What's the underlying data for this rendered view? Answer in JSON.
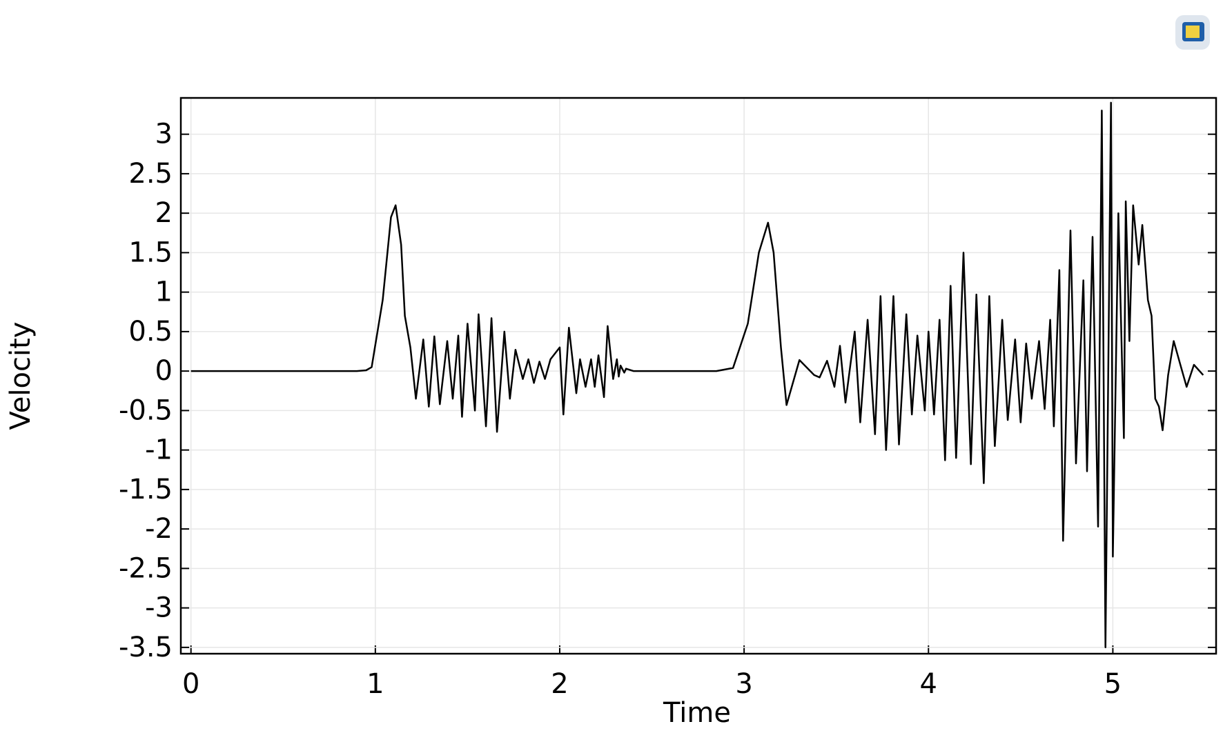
{
  "chart_data": {
    "type": "line",
    "x_label": "Time",
    "y_label": "Velocity",
    "xlim": [
      -0.055,
      5.56
    ],
    "ylim": [
      -3.58,
      3.46
    ],
    "xticks": [
      0,
      1,
      2,
      3,
      4,
      5
    ],
    "yticks": [
      -3.5,
      -3,
      -2.5,
      -2,
      -1.5,
      -1,
      -0.5,
      0,
      0.5,
      1,
      1.5,
      2,
      2.5,
      3
    ],
    "grid": true,
    "series": [
      {
        "name": "Velocity",
        "color": "#000000",
        "x": [
          0,
          0.5,
          0.9,
          0.95,
          0.98,
          1.04,
          1.085,
          1.11,
          1.14,
          1.16,
          1.19,
          1.22,
          1.26,
          1.29,
          1.32,
          1.35,
          1.39,
          1.42,
          1.45,
          1.47,
          1.5,
          1.54,
          1.56,
          1.6,
          1.63,
          1.66,
          1.7,
          1.73,
          1.76,
          1.8,
          1.83,
          1.86,
          1.89,
          1.92,
          1.95,
          2.0,
          2.02,
          2.05,
          2.09,
          2.11,
          2.14,
          2.17,
          2.19,
          2.21,
          2.24,
          2.26,
          2.29,
          2.31,
          2.32,
          2.33,
          2.35,
          2.36,
          2.4,
          2.85,
          2.94,
          3.02,
          3.08,
          3.13,
          3.16,
          3.2,
          3.23,
          3.3,
          3.38,
          3.41,
          3.45,
          3.49,
          3.52,
          3.55,
          3.6,
          3.63,
          3.67,
          3.71,
          3.74,
          3.77,
          3.81,
          3.84,
          3.88,
          3.91,
          3.94,
          3.98,
          4.0,
          4.03,
          4.06,
          4.09,
          4.12,
          4.15,
          4.19,
          4.23,
          4.26,
          4.3,
          4.33,
          4.36,
          4.4,
          4.43,
          4.47,
          4.5,
          4.53,
          4.56,
          4.6,
          4.63,
          4.66,
          4.68,
          4.71,
          4.73,
          4.77,
          4.8,
          4.84,
          4.86,
          4.89,
          4.92,
          4.94,
          4.96,
          4.99,
          5.0,
          5.03,
          5.06,
          5.07,
          5.09,
          5.11,
          5.14,
          5.16,
          5.19,
          5.21,
          5.23,
          5.25,
          5.27,
          5.3,
          5.33,
          5.37,
          5.4,
          5.44,
          5.49
        ],
        "values": [
          0,
          0,
          0,
          0.01,
          0.05,
          0.9,
          1.95,
          2.1,
          1.6,
          0.7,
          0.3,
          -0.35,
          0.4,
          -0.45,
          0.44,
          -0.42,
          0.38,
          -0.35,
          0.45,
          -0.58,
          0.6,
          -0.5,
          0.72,
          -0.7,
          0.67,
          -0.77,
          0.5,
          -0.35,
          0.27,
          -0.1,
          0.15,
          -0.15,
          0.12,
          -0.1,
          0.15,
          0.3,
          -0.55,
          0.55,
          -0.28,
          0.15,
          -0.2,
          0.15,
          -0.2,
          0.2,
          -0.33,
          0.57,
          -0.1,
          0.15,
          -0.07,
          0.07,
          -0.02,
          0.03,
          0,
          0,
          0.04,
          0.6,
          1.5,
          1.88,
          1.5,
          0.3,
          -0.43,
          0.14,
          -0.05,
          -0.08,
          0.13,
          -0.2,
          0.32,
          -0.4,
          0.5,
          -0.65,
          0.65,
          -0.8,
          0.95,
          -1.0,
          0.95,
          -0.93,
          0.72,
          -0.55,
          0.45,
          -0.5,
          0.5,
          -0.55,
          0.65,
          -1.13,
          1.08,
          -1.1,
          1.5,
          -1.18,
          0.97,
          -1.42,
          0.95,
          -0.95,
          0.65,
          -0.62,
          0.4,
          -0.65,
          0.35,
          -0.35,
          0.38,
          -0.48,
          0.65,
          -0.7,
          1.28,
          -2.15,
          1.78,
          -1.17,
          1.15,
          -1.27,
          1.7,
          -1.97,
          3.3,
          -3.5,
          3.4,
          -2.35,
          2.0,
          -0.85,
          2.15,
          0.38,
          2.1,
          1.35,
          1.85,
          0.9,
          0.7,
          -0.35,
          -0.45,
          -0.75,
          -0.05,
          0.38,
          0.05,
          -0.2,
          0.08,
          -0.05
        ]
      }
    ]
  }
}
